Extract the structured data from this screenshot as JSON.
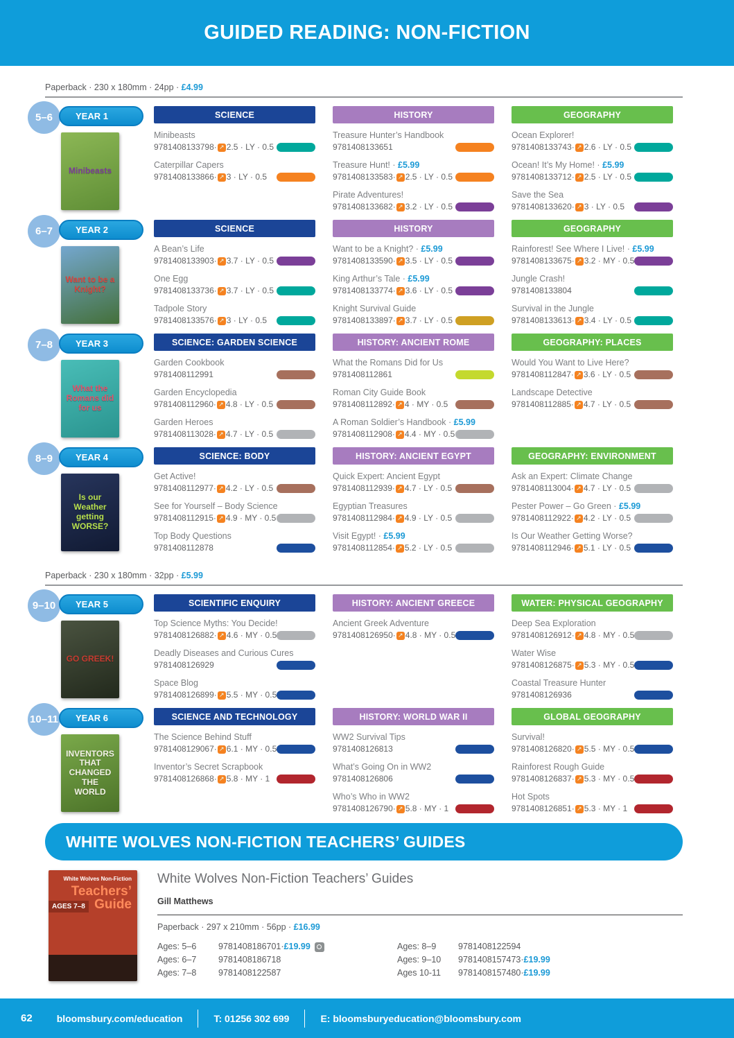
{
  "header": {
    "title": "GUIDED READING: NON-FICTION"
  },
  "banner": {
    "title": "WHITE WOLVES NON-FICTION TEACHERS’ GUIDES"
  },
  "sections": [
    {
      "format": {
        "text": "Paperback · 230 x 180mm · 24pp",
        "price": "£4.99"
      },
      "years": [
        {
          "ages": "5–6",
          "year": "YEAR 1",
          "cover": {
            "text": "Minibeasts",
            "bg1": "#8cb755",
            "bg2": "#5f8e36",
            "fg": "#7b3f98"
          },
          "columns": [
            {
              "header": "SCIENCE",
              "color": "#1b4597",
              "books": [
                {
                  "title": "Minibeasts",
                  "isbn": "9781408133798",
                  "level": "2.5",
                  "band": "LY",
                  "points": "0.5",
                  "band_colour": "#00a89c"
                },
                {
                  "title": "Caterpillar Capers",
                  "isbn": "9781408133866",
                  "level": "3",
                  "band": "LY",
                  "points": "0.5",
                  "band_colour": "#f58220"
                }
              ]
            },
            {
              "header": "HISTORY",
              "color": "#a77cbf",
              "books": [
                {
                  "title": "Treasure Hunter’s Handbook",
                  "isbn": "9781408133651",
                  "band_colour": "#f58220"
                },
                {
                  "title": "Treasure Hunt!",
                  "price": "£5.99",
                  "isbn": "9781408133583",
                  "level": "2.5",
                  "band": "LY",
                  "points": "0.5",
                  "band_colour": "#f58220"
                },
                {
                  "title": "Pirate Adventures!",
                  "isbn": "9781408133682",
                  "level": "3.2",
                  "band": "LY",
                  "points": "0.5",
                  "band_colour": "#7b3f98"
                }
              ]
            },
            {
              "header": "GEOGRAPHY",
              "color": "#68bf4d",
              "books": [
                {
                  "title": "Ocean Explorer!",
                  "isbn": "9781408133743",
                  "level": "2.6",
                  "band": "LY",
                  "points": "0.5",
                  "band_colour": "#00a89c"
                },
                {
                  "title": "Ocean! It’s My Home!",
                  "price": "£5.99",
                  "isbn": "9781408133712",
                  "level": "2.5",
                  "band": "LY",
                  "points": "0.5",
                  "band_colour": "#00a89c"
                },
                {
                  "title": "Save the Sea",
                  "isbn": "9781408133620",
                  "level": "3",
                  "band": "LY",
                  "points": "0.5",
                  "band_colour": "#7b3f98"
                }
              ]
            }
          ]
        },
        {
          "ages": "6–7",
          "year": "YEAR 2",
          "cover": {
            "text": "Want to be a Knight?",
            "bg1": "#74a7cf",
            "bg2": "#44703a",
            "fg": "#d8453e"
          },
          "columns": [
            {
              "header": "SCIENCE",
              "color": "#1b4597",
              "books": [
                {
                  "title": "A Bean’s Life",
                  "isbn": "9781408133903",
                  "level": "3.7",
                  "band": "LY",
                  "points": "0.5",
                  "band_colour": "#7b3f98"
                },
                {
                  "title": "One Egg",
                  "isbn": "9781408133736",
                  "level": "3.7",
                  "band": "LY",
                  "points": "0.5",
                  "band_colour": "#00a89c"
                },
                {
                  "title": "Tadpole Story",
                  "isbn": "9781408133576",
                  "level": "3",
                  "band": "LY",
                  "points": "0.5",
                  "band_colour": "#00a89c"
                }
              ]
            },
            {
              "header": "HISTORY",
              "color": "#a77cbf",
              "books": [
                {
                  "title": "Want to be a Knight?",
                  "price": "£5.99",
                  "isbn": "9781408133590",
                  "level": "3.5",
                  "band": "LY",
                  "points": "0.5",
                  "band_colour": "#7b3f98"
                },
                {
                  "title": "King Arthur’s Tale",
                  "price": "£5.99",
                  "isbn": "9781408133774",
                  "level": "3.6",
                  "band": "LY",
                  "points": "0.5",
                  "band_colour": "#7b3f98"
                },
                {
                  "title": "Knight Survival Guide",
                  "isbn": "9781408133897",
                  "level": "3.7",
                  "band": "LY",
                  "points": "0.5",
                  "band_colour": "#cfa023"
                }
              ]
            },
            {
              "header": "GEOGRAPHY",
              "color": "#68bf4d",
              "books": [
                {
                  "title": "Rainforest! See Where I Live!",
                  "price": "£5.99",
                  "isbn": "9781408133675",
                  "level": "3.2",
                  "band": "MY",
                  "points": "0.5",
                  "band_colour": "#7b3f98"
                },
                {
                  "title": "Jungle Crash!",
                  "isbn": "9781408133804",
                  "band_colour": "#00a89c"
                },
                {
                  "title": "Survival in the Jungle",
                  "isbn": "9781408133613",
                  "level": "3.4",
                  "band": "LY",
                  "points": "0.5",
                  "band_colour": "#00a89c"
                }
              ]
            }
          ]
        },
        {
          "ages": "7–8",
          "year": "YEAR 3",
          "cover": {
            "text": "What the Romans did for us",
            "bg1": "#49bdb7",
            "bg2": "#2a948f",
            "fg": "#e2526b"
          },
          "columns": [
            {
              "header": "SCIENCE: GARDEN SCIENCE",
              "color": "#1b4597",
              "books": [
                {
                  "title": "Garden Cookbook",
                  "isbn": "9781408112991",
                  "band_colour": "#a7705d"
                },
                {
                  "title": "Garden Encyclopedia",
                  "isbn": "9781408112960",
                  "level": "4.8",
                  "band": "LY",
                  "points": "0.5",
                  "band_colour": "#a7705d"
                },
                {
                  "title": "Garden Heroes",
                  "isbn": "9781408113028",
                  "level": "4.7",
                  "band": "LY",
                  "points": "0.5",
                  "band_colour": "#b1b3b6"
                }
              ]
            },
            {
              "header": "HISTORY: ANCIENT ROME",
              "color": "#a77cbf",
              "books": [
                {
                  "title": "What the Romans Did for Us",
                  "isbn": "9781408112861",
                  "band_colour": "#c4d92e"
                },
                {
                  "title": "Roman City Guide Book",
                  "isbn": "9781408112892",
                  "level": "4",
                  "band": "MY",
                  "points": "0.5",
                  "band_colour": "#a7705d"
                },
                {
                  "title": "A Roman Soldier’s Handbook",
                  "price": "£5.99",
                  "isbn": "9781408112908",
                  "level": "4.4",
                  "band": "MY",
                  "points": "0.5",
                  "band_colour": "#b1b3b6"
                }
              ]
            },
            {
              "header": "GEOGRAPHY: PLACES",
              "color": "#68bf4d",
              "books": [
                {
                  "title": "Would You Want to Live Here?",
                  "isbn": "9781408112847",
                  "level": "3.6",
                  "band": "LY",
                  "points": "0.5",
                  "band_colour": "#a7705d"
                },
                {
                  "title": "Landscape Detective",
                  "isbn": "9781408112885",
                  "level": "4.7",
                  "band": "LY",
                  "points": "0.5",
                  "band_colour": "#a7705d"
                }
              ]
            }
          ]
        },
        {
          "ages": "8–9",
          "year": "YEAR 4",
          "cover": {
            "text": "Is our Weather getting WORSE?",
            "bg1": "#27355c",
            "bg2": "#111a33",
            "fg": "#b8e04e"
          },
          "columns": [
            {
              "header": "SCIENCE: BODY",
              "color": "#1b4597",
              "books": [
                {
                  "title": "Get Active!",
                  "isbn": "9781408112977",
                  "level": "4.2",
                  "band": "LY",
                  "points": "0.5",
                  "band_colour": "#a7705d"
                },
                {
                  "title": "See for Yourself – Body Science",
                  "isbn": "9781408112915",
                  "level": "4.9",
                  "band": "MY",
                  "points": "0.5",
                  "band_colour": "#b1b3b6"
                },
                {
                  "title": "Top Body Questions",
                  "isbn": "9781408112878",
                  "band_colour": "#1d4f9f"
                }
              ]
            },
            {
              "header": "HISTORY: ANCIENT EGYPT",
              "color": "#a77cbf",
              "books": [
                {
                  "title": "Quick Expert: Ancient Egypt",
                  "isbn": "9781408112939",
                  "level": "4.7",
                  "band": "LY",
                  "points": "0.5",
                  "band_colour": "#a7705d"
                },
                {
                  "title": "Egyptian Treasures",
                  "isbn": "9781408112984",
                  "level": "4.9",
                  "band": "LY",
                  "points": "0.5",
                  "band_colour": "#b1b3b6"
                },
                {
                  "title": "Visit Egypt!",
                  "price": "£5.99",
                  "isbn": "9781408112854",
                  "level": "5.2",
                  "band": "LY",
                  "points": "0.5",
                  "band_colour": "#b1b3b6"
                }
              ]
            },
            {
              "header": "GEOGRAPHY: ENVIRONMENT",
              "color": "#68bf4d",
              "books": [
                {
                  "title": "Ask an Expert: Climate Change",
                  "isbn": "9781408113004",
                  "level": "4.7",
                  "band": "LY",
                  "points": "0.5",
                  "band_colour": "#b1b3b6"
                },
                {
                  "title": "Pester Power – Go Green",
                  "price": "£5.99",
                  "isbn": "9781408112922",
                  "level": "4.2",
                  "band": "LY",
                  "points": "0.5",
                  "band_colour": "#b1b3b6"
                },
                {
                  "title": "Is Our Weather Getting Worse?",
                  "isbn": "9781408112946",
                  "level": "5.1",
                  "band": "LY",
                  "points": "0.5",
                  "band_colour": "#1d4f9f"
                }
              ]
            }
          ]
        }
      ]
    },
    {
      "format": {
        "text": "Paperback · 230 x 180mm · 32pp",
        "price": "£5.99"
      },
      "years": [
        {
          "ages": "9–10",
          "year": "YEAR 5",
          "cover": {
            "text": "GO GREEK!",
            "bg1": "#4a5340",
            "bg2": "#22291c",
            "fg": "#c63b30"
          },
          "columns": [
            {
              "header": "SCIENTIFIC ENQUIRY",
              "color": "#1b4597",
              "books": [
                {
                  "title": "Top Science Myths: You Decide!",
                  "isbn": "9781408126882",
                  "level": "4.6",
                  "band": "MY",
                  "points": "0.5",
                  "band_colour": "#b1b3b6"
                },
                {
                  "title": "Deadly Diseases and Curious Cures",
                  "isbn": "9781408126929",
                  "band_colour": "#1d4f9f"
                },
                {
                  "title": "Space Blog",
                  "isbn": "9781408126899",
                  "level": "5.5",
                  "band": "MY",
                  "points": "0.5",
                  "band_colour": "#1d4f9f"
                }
              ]
            },
            {
              "header": "HISTORY: ANCIENT GREECE",
              "color": "#a77cbf",
              "books": [
                {
                  "title": "Ancient Greek Adventure",
                  "isbn": "9781408126950",
                  "level": "4.8",
                  "band": "MY",
                  "points": "0.5",
                  "band_colour": "#1d4f9f"
                }
              ]
            },
            {
              "header": "WATER: PHYSICAL GEOGRAPHY",
              "color": "#68bf4d",
              "books": [
                {
                  "title": "Deep Sea Exploration",
                  "isbn": "9781408126912",
                  "level": "4.8",
                  "band": "MY",
                  "points": "0.5",
                  "band_colour": "#b1b3b6"
                },
                {
                  "title": "Water Wise",
                  "isbn": "9781408126875",
                  "level": "5.3",
                  "band": "MY",
                  "points": "0.5",
                  "band_colour": "#1d4f9f"
                },
                {
                  "title": "Coastal Treasure Hunter",
                  "isbn": "9781408126936",
                  "band_colour": "#1d4f9f"
                }
              ]
            }
          ]
        },
        {
          "ages": "10–11",
          "year": "YEAR 6",
          "cover": {
            "text": "INVENTORS THAT CHANGED THE WORLD",
            "bg1": "#7aa94a",
            "bg2": "#4c7329",
            "fg": "#f2f2e6"
          },
          "columns": [
            {
              "header": "SCIENCE AND TECHNOLOGY",
              "color": "#1b4597",
              "books": [
                {
                  "title": "The Science Behind Stuff",
                  "isbn": "9781408129067",
                  "level": "6.1",
                  "band": "MY",
                  "points": "0.5",
                  "band_colour": "#1d4f9f"
                },
                {
                  "title": "Inventor’s Secret Scrapbook",
                  "isbn": "9781408126868",
                  "level": "5.8",
                  "band": "MY",
                  "points": "1",
                  "band_colour": "#b2262e"
                }
              ]
            },
            {
              "header": "HISTORY: WORLD WAR II",
              "color": "#a77cbf",
              "books": [
                {
                  "title": "WW2 Survival Tips",
                  "isbn": "9781408126813",
                  "band_colour": "#1d4f9f"
                },
                {
                  "title": "What’s Going On in WW2",
                  "isbn": "9781408126806",
                  "band_colour": "#1d4f9f"
                },
                {
                  "title": "Who’s Who in WW2",
                  "isbn": "9781408126790",
                  "level": "5.8",
                  "band": "MY",
                  "points": "1",
                  "band_colour": "#b2262e"
                }
              ]
            },
            {
              "header": "GLOBAL GEOGRAPHY",
              "color": "#68bf4d",
              "books": [
                {
                  "title": "Survival!",
                  "isbn": "9781408126820",
                  "level": "5.5",
                  "band": "MY",
                  "points": "0.5",
                  "band_colour": "#1d4f9f"
                },
                {
                  "title": "Rainforest Rough Guide",
                  "isbn": "9781408126837",
                  "level": "5.3",
                  "band": "MY",
                  "points": "0.5",
                  "band_colour": "#b2262e"
                },
                {
                  "title": "Hot Spots",
                  "isbn": "9781408126851",
                  "level": "5.3",
                  "band": "MY",
                  "points": "1",
                  "band_colour": "#b2262e"
                }
              ]
            }
          ]
        }
      ]
    }
  ],
  "teachers": {
    "title": "White Wolves Non-Fiction Teachers’ Guides",
    "author": "Gill Matthews",
    "format": {
      "text": "Paperback · 297 x 210mm · 56pp",
      "price": "£16.99"
    },
    "cover": {
      "brand": "White Wolves Non-Fiction",
      "title": "Teachers’ Guide",
      "ages": "AGES 7–8"
    },
    "ages": [
      {
        "label": "Ages: 5–6",
        "isbn": "9781408186701",
        "price": "£19.99",
        "icon": "camera"
      },
      {
        "label": "Ages: 6–7",
        "isbn": "9781408186718"
      },
      {
        "label": "Ages: 7–8",
        "isbn": "9781408122587"
      },
      {
        "label": "Ages: 8–9",
        "isbn": "9781408122594"
      },
      {
        "label": "Ages: 9–10",
        "isbn": "9781408157473",
        "price": "£19.99"
      },
      {
        "label": "Ages 10-11",
        "isbn": "9781408157480",
        "price": "£19.99"
      }
    ]
  },
  "footer": {
    "page_number": "62",
    "website": "bloomsbury.com/education",
    "phone": "T: 01256 302 699",
    "email": "E: bloomsburyeducation@bloomsbury.com"
  }
}
